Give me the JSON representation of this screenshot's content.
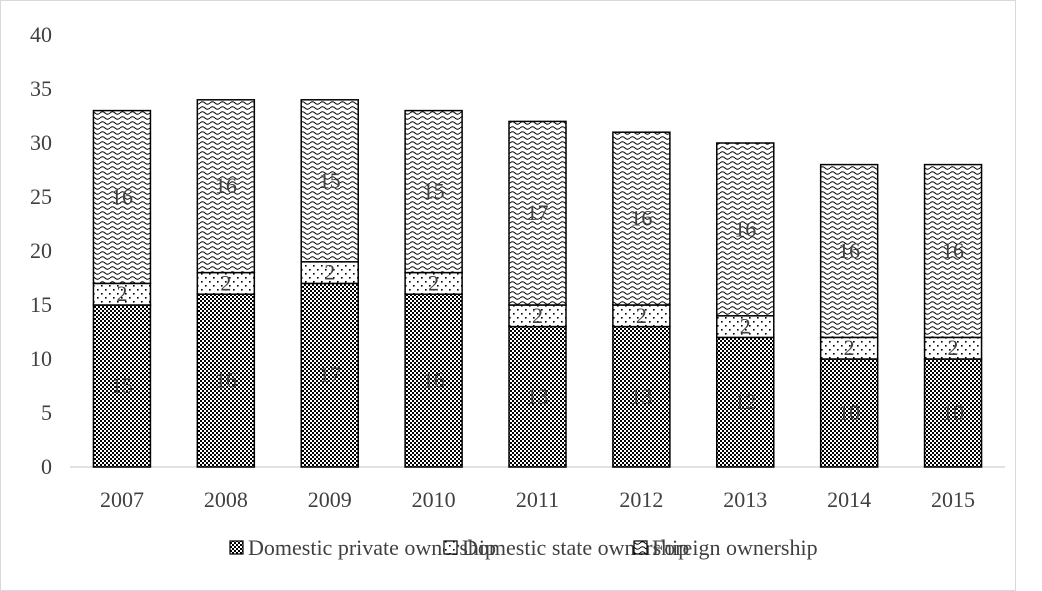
{
  "chart_data": {
    "type": "bar",
    "stacked": true,
    "categories": [
      "2007",
      "2008",
      "2009",
      "2010",
      "2011",
      "2012",
      "2013",
      "2014",
      "2015"
    ],
    "series": [
      {
        "name": "Domestic private ownership",
        "values": [
          15,
          16,
          17,
          16,
          13,
          13,
          12,
          10,
          10
        ],
        "pattern": "dense-checker"
      },
      {
        "name": "Domestic state ownership",
        "values": [
          2,
          2,
          2,
          2,
          2,
          2,
          2,
          2,
          2
        ],
        "pattern": "sparse-dots"
      },
      {
        "name": "Foreign ownership",
        "values": [
          16,
          16,
          15,
          15,
          17,
          16,
          16,
          16,
          16
        ],
        "pattern": "waves"
      }
    ],
    "ylim": [
      0,
      40
    ],
    "yticks": [
      0,
      5,
      10,
      15,
      20,
      25,
      30,
      35,
      40
    ],
    "title": "",
    "xlabel": "",
    "ylabel": "",
    "grid": false,
    "legend_position": "bottom",
    "colors": {
      "fill": "#000000",
      "background": "#ffffff",
      "text": "#404040",
      "axis": "#d9d9d9",
      "border": "#d9d9d9"
    }
  }
}
